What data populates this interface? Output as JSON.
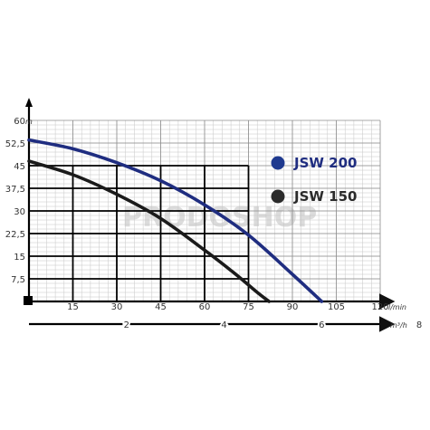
{
  "chart_data": {
    "type": "line",
    "x": [
      0,
      15,
      30,
      45,
      60,
      75,
      90,
      100
    ],
    "xlim": [
      0,
      120
    ],
    "ylim": [
      0,
      60
    ],
    "x_ticks": [
      15,
      30,
      45,
      60,
      75,
      90,
      105,
      120
    ],
    "y_ticks": [
      7.5,
      15,
      22.5,
      30,
      37.5,
      45,
      52.5,
      60
    ],
    "y_tick_labels": [
      "7,5",
      "15",
      "22,5",
      "30",
      "37,5",
      "45",
      "52,5",
      "60"
    ],
    "xlabel": "l/min",
    "ylabel": "m",
    "secondary_x_ticks": [
      2,
      4,
      6,
      8
    ],
    "secondary_xlabel": "m³/h",
    "grid": true,
    "legend_position": "right",
    "series": [
      {
        "name": "JSW 200",
        "color": "#1f2d80",
        "x": [
          0,
          15,
          30,
          45,
          60,
          75,
          90,
          100
        ],
        "values": [
          53.5,
          50.6,
          46,
          40,
          32,
          22,
          9,
          0
        ]
      },
      {
        "name": "JSW 150",
        "color": "#1a1a1a",
        "x": [
          0,
          15,
          30,
          45,
          60,
          70,
          78,
          82
        ],
        "values": [
          46.5,
          42,
          35.5,
          27.5,
          17,
          9.5,
          3,
          0
        ]
      }
    ]
  },
  "legend": {
    "items": [
      {
        "label": "JSW 200",
        "color": "#1f3a8f",
        "text_color": "#1f2d80"
      },
      {
        "label": "JSW 150",
        "color": "#2b2b2b",
        "text_color": "#2b2b2b"
      }
    ]
  },
  "watermark": "PRODOSHOP"
}
